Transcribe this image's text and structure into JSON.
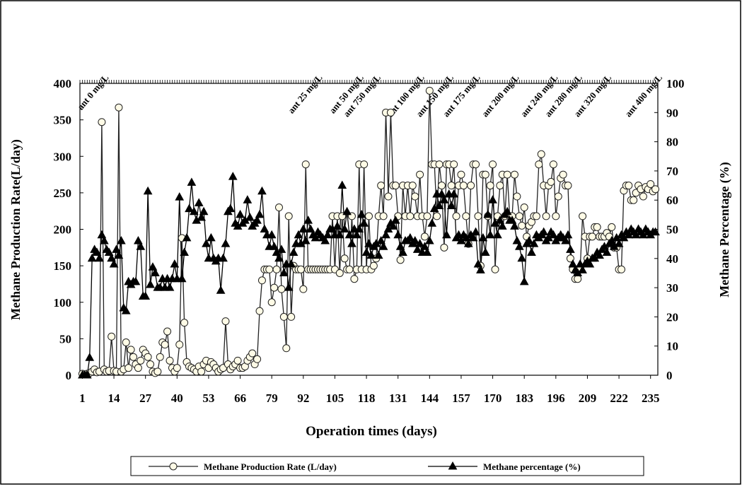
{
  "chart_data": {
    "type": "line",
    "x_label": "Operation times (days)",
    "y_label": "Methane Production Rate(L/day)",
    "y2_label": "Methane Percentage (%)",
    "xlim": [
      0,
      238
    ],
    "xticks": [
      1,
      14,
      27,
      40,
      53,
      66,
      79,
      92,
      105,
      118,
      131,
      144,
      157,
      170,
      183,
      196,
      209,
      222,
      235
    ],
    "ylim": [
      0,
      400
    ],
    "yticks": [
      0,
      50,
      100,
      150,
      200,
      250,
      300,
      350,
      400
    ],
    "y2lim": [
      0,
      100
    ],
    "y2ticks": [
      0,
      10,
      20,
      30,
      40,
      50,
      60,
      70,
      80,
      90,
      100
    ],
    "annotations": [
      {
        "text": "ant 0 mg/L",
        "x": 12
      },
      {
        "text": "ant 25 mg/L",
        "x": 100
      },
      {
        "text": "ant 50 mg/L",
        "x": 117
      },
      {
        "text": "ant 750 mg/L",
        "x": 124
      },
      {
        "text": "ant 100 mg/L",
        "x": 142
      },
      {
        "text": "ant 150 mg/L",
        "x": 154
      },
      {
        "text": "ant 175 mg/L",
        "x": 165
      },
      {
        "text": "ant 200 mg/L",
        "x": 181
      },
      {
        "text": "ant 240 mg/L",
        "x": 197
      },
      {
        "text": "ant 280 mg/L",
        "x": 207
      },
      {
        "text": "ant 320 mg/L",
        "x": 219
      },
      {
        "text": "ant 400 mg/L",
        "x": 240
      }
    ],
    "x": [
      1,
      2,
      3,
      4,
      5,
      6,
      7,
      8,
      9,
      10,
      11,
      12,
      13,
      14,
      15,
      16,
      17,
      18,
      19,
      20,
      21,
      22,
      23,
      24,
      25,
      26,
      27,
      28,
      29,
      30,
      31,
      32,
      33,
      34,
      35,
      36,
      37,
      38,
      39,
      40,
      41,
      42,
      43,
      44,
      45,
      46,
      47,
      48,
      49,
      50,
      51,
      52,
      53,
      54,
      55,
      56,
      57,
      58,
      59,
      60,
      61,
      62,
      63,
      64,
      65,
      66,
      67,
      68,
      69,
      70,
      71,
      72,
      73,
      74,
      75,
      76,
      77,
      78,
      79,
      80,
      81,
      82,
      83,
      84,
      85,
      86,
      87,
      88,
      89,
      90,
      91,
      92,
      93,
      94,
      95,
      96,
      97,
      98,
      99,
      100,
      101,
      102,
      103,
      104,
      105,
      106,
      107,
      108,
      109,
      110,
      111,
      112,
      113,
      114,
      115,
      116,
      117,
      118,
      119,
      120,
      121,
      122,
      123,
      124,
      125,
      126,
      127,
      128,
      129,
      130,
      131,
      132,
      133,
      134,
      135,
      136,
      137,
      138,
      139,
      140,
      141,
      142,
      143,
      144,
      145,
      146,
      147,
      148,
      149,
      150,
      151,
      152,
      153,
      154,
      155,
      156,
      157,
      158,
      159,
      160,
      161,
      162,
      163,
      164,
      165,
      166,
      167,
      168,
      169,
      170,
      171,
      172,
      173,
      174,
      175,
      176,
      177,
      178,
      179,
      180,
      181,
      182,
      183,
      184,
      185,
      186,
      187,
      188,
      189,
      190,
      191,
      192,
      193,
      194,
      195,
      196,
      197,
      198,
      199,
      200,
      201,
      202,
      203,
      204,
      205,
      206,
      207,
      208,
      209,
      210,
      211,
      212,
      213,
      214,
      215,
      216,
      217,
      218,
      219,
      220,
      221,
      222,
      223,
      224,
      225,
      226,
      227,
      228,
      229,
      230,
      231,
      232,
      233,
      234,
      235,
      236,
      237
    ],
    "series": [
      {
        "name": "Methane Production Rate (L/day)",
        "color": "#222222",
        "fill": "#fffbe6",
        "marker": "circle",
        "axis": "y",
        "values": [
          2,
          1,
          2,
          3,
          5,
          8,
          4,
          5,
          347,
          8,
          5,
          6,
          53,
          6,
          5,
          367,
          5,
          8,
          45,
          10,
          35,
          25,
          15,
          10,
          20,
          35,
          30,
          25,
          15,
          5,
          3,
          5,
          25,
          45,
          42,
          60,
          20,
          10,
          5,
          10,
          42,
          188,
          72,
          18,
          12,
          10,
          8,
          5,
          12,
          5,
          15,
          20,
          10,
          18,
          15,
          10,
          5,
          8,
          10,
          74,
          15,
          8,
          12,
          15,
          20,
          10,
          10,
          12,
          20,
          25,
          30,
          15,
          22,
          88,
          130,
          145,
          145,
          145,
          100,
          120,
          145,
          230,
          118,
          80,
          37,
          218,
          80,
          150,
          145,
          145,
          145,
          118,
          289,
          145,
          145,
          145,
          145,
          145,
          145,
          145,
          145,
          145,
          145,
          218,
          145,
          218,
          140,
          218,
          160,
          145,
          145,
          218,
          132,
          145,
          289,
          145,
          289,
          145,
          218,
          145,
          150,
          160,
          218,
          260,
          218,
          360,
          245,
          360,
          260,
          260,
          218,
          158,
          260,
          218,
          260,
          218,
          260,
          245,
          218,
          275,
          218,
          190,
          218,
          390,
          289,
          289,
          218,
          289,
          260,
          175,
          289,
          289,
          260,
          289,
          218,
          260,
          275,
          260,
          218,
          180,
          260,
          289,
          289,
          218,
          150,
          275,
          275,
          218,
          260,
          289,
          145,
          218,
          260,
          275,
          218,
          275,
          218,
          218,
          275,
          245,
          218,
          205,
          230,
          190,
          205,
          210,
          218,
          218,
          289,
          303,
          260,
          218,
          260,
          265,
          289,
          218,
          245,
          270,
          275,
          260,
          260,
          160,
          145,
          132,
          132,
          145,
          218,
          190,
          160,
          190,
          190,
          203,
          203,
          190,
          190,
          190,
          195,
          190,
          203,
          175,
          175,
          145,
          145,
          253,
          260,
          260,
          240,
          240,
          250,
          260,
          255,
          245,
          258,
          255,
          262,
          252,
          255
        ]
      },
      {
        "name": "Methane percentage (%)",
        "color": "#000000",
        "fill": "#000000",
        "marker": "triangle",
        "axis": "y2",
        "values": [
          0,
          0,
          0,
          6,
          40,
          43,
          42,
          40,
          48,
          46,
          43,
          42,
          40,
          38,
          43,
          41,
          46,
          23,
          22,
          32,
          31,
          32,
          32,
          46,
          44,
          27,
          27,
          63,
          31,
          37,
          35,
          30,
          30,
          33,
          30,
          33,
          30,
          33,
          38,
          33,
          61,
          33,
          42,
          47,
          57,
          66,
          56,
          53,
          59,
          54,
          56,
          45,
          40,
          47,
          40,
          39,
          40,
          29,
          40,
          45,
          56,
          57,
          68,
          52,
          51,
          55,
          52,
          53,
          60,
          54,
          51,
          52,
          53,
          55,
          63,
          50,
          48,
          44,
          48,
          44,
          42,
          40,
          43,
          35,
          38,
          30,
          38,
          42,
          45,
          48,
          45,
          50,
          46,
          53,
          50,
          48,
          47,
          49,
          48,
          47,
          46,
          48,
          50,
          50,
          48,
          51,
          48,
          65,
          50,
          56,
          48,
          45,
          50,
          48,
          50,
          55,
          52,
          42,
          45,
          41,
          44,
          45,
          41,
          46,
          44,
          48,
          50,
          52,
          51,
          53,
          48,
          44,
          42,
          46,
          46,
          47,
          45,
          46,
          43,
          45,
          42,
          44,
          42,
          46,
          52,
          57,
          62,
          58,
          62,
          60,
          48,
          62,
          58,
          62,
          47,
          48,
          46,
          48,
          47,
          45,
          48,
          47,
          49,
          38,
          36,
          47,
          42,
          55,
          48,
          60,
          52,
          48,
          53,
          51,
          55,
          56,
          53,
          53,
          51,
          46,
          44,
          40,
          32,
          45,
          46,
          42,
          45,
          48,
          47,
          48,
          49,
          46,
          47,
          49,
          48,
          46,
          47,
          48,
          47,
          46,
          48,
          43,
          38,
          36,
          35,
          38,
          36,
          38,
          39,
          38,
          40,
          40,
          42,
          41,
          43,
          44,
          42,
          45,
          46,
          44,
          47,
          45,
          48,
          47,
          49,
          48,
          50,
          49,
          48,
          50,
          49,
          48,
          50,
          49,
          48,
          49,
          49
        ]
      }
    ]
  }
}
